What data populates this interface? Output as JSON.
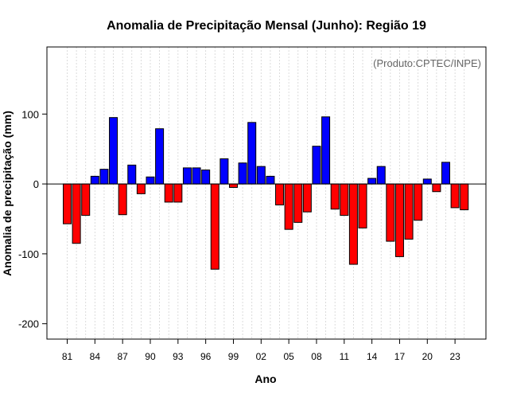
{
  "chart_data": {
    "type": "bar",
    "title": "Anomalia de Precipitação Mensal (Junho): Região 19",
    "xlabel": "Ano",
    "ylabel": "Anomalia de precipitação (mm)",
    "credit": "(Produto:CPTEC/INPE)",
    "ylim": [
      -222,
      196
    ],
    "yticks": [
      -200,
      -100,
      0,
      100
    ],
    "ytick_labels": [
      "-200",
      "-100",
      "0",
      "100"
    ],
    "xtick_labels": [
      "81",
      "84",
      "87",
      "90",
      "93",
      "96",
      "99",
      "02",
      "05",
      "08",
      "11",
      "14",
      "17",
      "20",
      "23"
    ],
    "xtick_years": [
      1981,
      1984,
      1987,
      1990,
      1993,
      1996,
      1999,
      2002,
      2005,
      2008,
      2011,
      2014,
      2017,
      2020,
      2023
    ],
    "grid": true,
    "colors": {
      "positive": "#0000ff",
      "negative": "#ff0000",
      "edge": "#000000",
      "grid": "#d3d3d3"
    },
    "years": [
      1981,
      1982,
      1983,
      1984,
      1985,
      1986,
      1987,
      1988,
      1989,
      1990,
      1991,
      1992,
      1993,
      1994,
      1995,
      1996,
      1997,
      1998,
      1999,
      2000,
      2001,
      2002,
      2003,
      2004,
      2005,
      2006,
      2007,
      2008,
      2009,
      2010,
      2011,
      2012,
      2013,
      2014,
      2015,
      2016,
      2017,
      2018,
      2019,
      2020,
      2021,
      2022,
      2023,
      2024
    ],
    "values": [
      -57,
      -85,
      -45,
      11,
      21,
      95,
      -44,
      27,
      -14,
      10,
      79,
      -26,
      -26,
      23,
      23,
      20,
      -122,
      36,
      -5,
      30,
      88,
      25,
      11,
      -30,
      -65,
      -55,
      -40,
      54,
      96,
      -36,
      -45,
      -115,
      -63,
      8,
      25,
      -82,
      -104,
      -79,
      -52,
      7,
      -11,
      31,
      -34,
      -37
    ]
  }
}
